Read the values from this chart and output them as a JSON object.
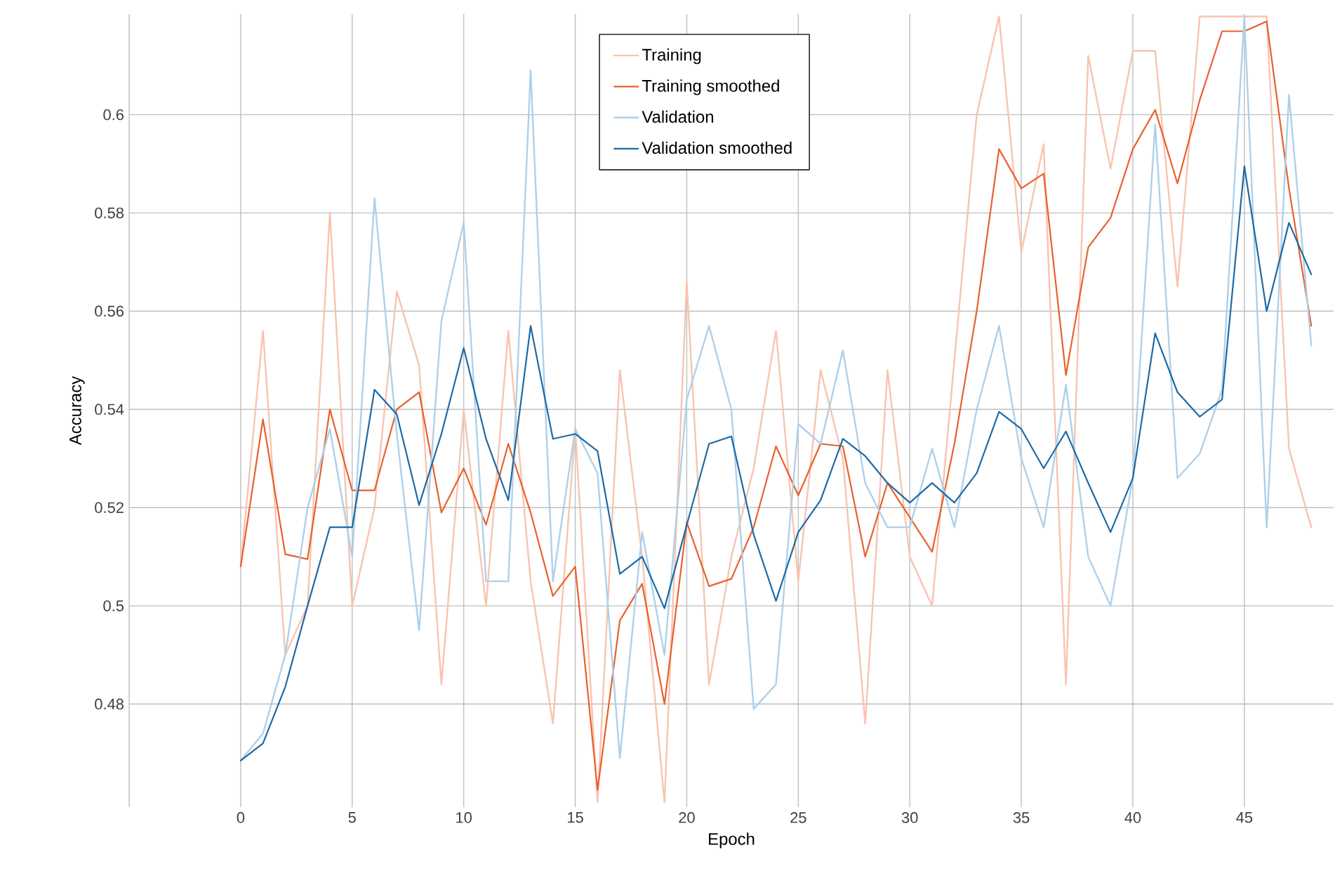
{
  "chart_data": {
    "type": "line",
    "xlabel": "Epoch",
    "ylabel": "Accuracy",
    "x": [
      0,
      1,
      2,
      3,
      4,
      5,
      6,
      7,
      8,
      9,
      10,
      11,
      12,
      13,
      14,
      15,
      16,
      17,
      18,
      19,
      20,
      21,
      22,
      23,
      24,
      25,
      26,
      27,
      28,
      29,
      30,
      31,
      32,
      33,
      34,
      35,
      36,
      37,
      38,
      39,
      40,
      41,
      42,
      43,
      44,
      45,
      46,
      47,
      48
    ],
    "xlim": [
      -5,
      49
    ],
    "ylim": [
      0.459,
      0.6205
    ],
    "xticks": [
      {
        "value": -5,
        "label": null
      },
      0,
      5,
      10,
      15,
      20,
      25,
      30,
      35,
      40,
      45
    ],
    "yticks": [
      0.48,
      0.5,
      0.52,
      0.54,
      0.56,
      0.58,
      0.6
    ],
    "grid": true,
    "legend": "top",
    "line_style": "solid",
    "series": [
      {
        "name": "Training",
        "color": "#f8c4ae",
        "values": [
          0.508,
          0.556,
          0.49,
          0.5,
          0.58,
          0.5,
          0.52,
          0.564,
          0.549,
          0.484,
          0.54,
          0.5,
          0.556,
          0.505,
          0.476,
          0.536,
          0.46,
          0.548,
          0.51,
          0.46,
          0.566,
          0.484,
          0.51,
          0.528,
          0.556,
          0.505,
          0.548,
          0.53,
          0.476,
          0.548,
          0.51,
          0.5,
          0.55,
          0.6,
          0.62,
          0.572,
          0.594,
          0.484,
          0.612,
          0.589,
          0.613,
          0.613,
          0.565,
          0.62,
          0.62,
          0.62,
          0.62,
          0.532,
          0.516
        ]
      },
      {
        "name": "Training smoothed",
        "color": "#e8602c",
        "values": [
          0.508,
          0.538,
          0.5105,
          0.5095,
          0.54,
          0.5235,
          0.5235,
          0.54,
          0.5435,
          0.519,
          0.528,
          0.5165,
          0.533,
          0.519,
          0.502,
          0.508,
          0.4625,
          0.497,
          0.5045,
          0.48,
          0.517,
          0.504,
          0.5055,
          0.516,
          0.5325,
          0.5225,
          0.533,
          0.5325,
          0.51,
          0.525,
          0.518,
          0.511,
          0.533,
          0.56,
          0.593,
          0.585,
          0.588,
          0.547,
          0.573,
          0.579,
          0.593,
          0.601,
          0.586,
          0.603,
          0.617,
          0.617,
          0.619,
          0.585,
          0.557
        ]
      },
      {
        "name": "Validation",
        "color": "#aed0ea",
        "values": [
          0.4685,
          0.474,
          0.49,
          0.52,
          0.536,
          0.51,
          0.583,
          0.535,
          0.495,
          0.558,
          0.578,
          0.505,
          0.505,
          0.609,
          0.505,
          0.536,
          0.527,
          0.469,
          0.515,
          0.49,
          0.542,
          0.557,
          0.54,
          0.479,
          0.484,
          0.537,
          0.533,
          0.552,
          0.525,
          0.516,
          0.516,
          0.532,
          0.516,
          0.54,
          0.557,
          0.53,
          0.516,
          0.545,
          0.51,
          0.5,
          0.526,
          0.598,
          0.526,
          0.531,
          0.544,
          0.62,
          0.516,
          0.604,
          0.553
        ]
      },
      {
        "name": "Validation smoothed",
        "color": "#1c6aa6",
        "values": [
          0.4685,
          0.472,
          0.4835,
          0.5,
          0.516,
          0.516,
          0.544,
          0.539,
          0.5205,
          0.535,
          0.5525,
          0.534,
          0.5215,
          0.557,
          0.534,
          0.535,
          0.5315,
          0.5065,
          0.51,
          0.4995,
          0.5165,
          0.533,
          0.5345,
          0.5145,
          0.501,
          0.515,
          0.5215,
          0.534,
          0.5305,
          0.525,
          0.521,
          0.525,
          0.521,
          0.527,
          0.5395,
          0.536,
          0.528,
          0.5355,
          0.525,
          0.515,
          0.526,
          0.5555,
          0.5435,
          0.5385,
          0.542,
          0.5895,
          0.56,
          0.578,
          0.5675
        ]
      }
    ]
  }
}
